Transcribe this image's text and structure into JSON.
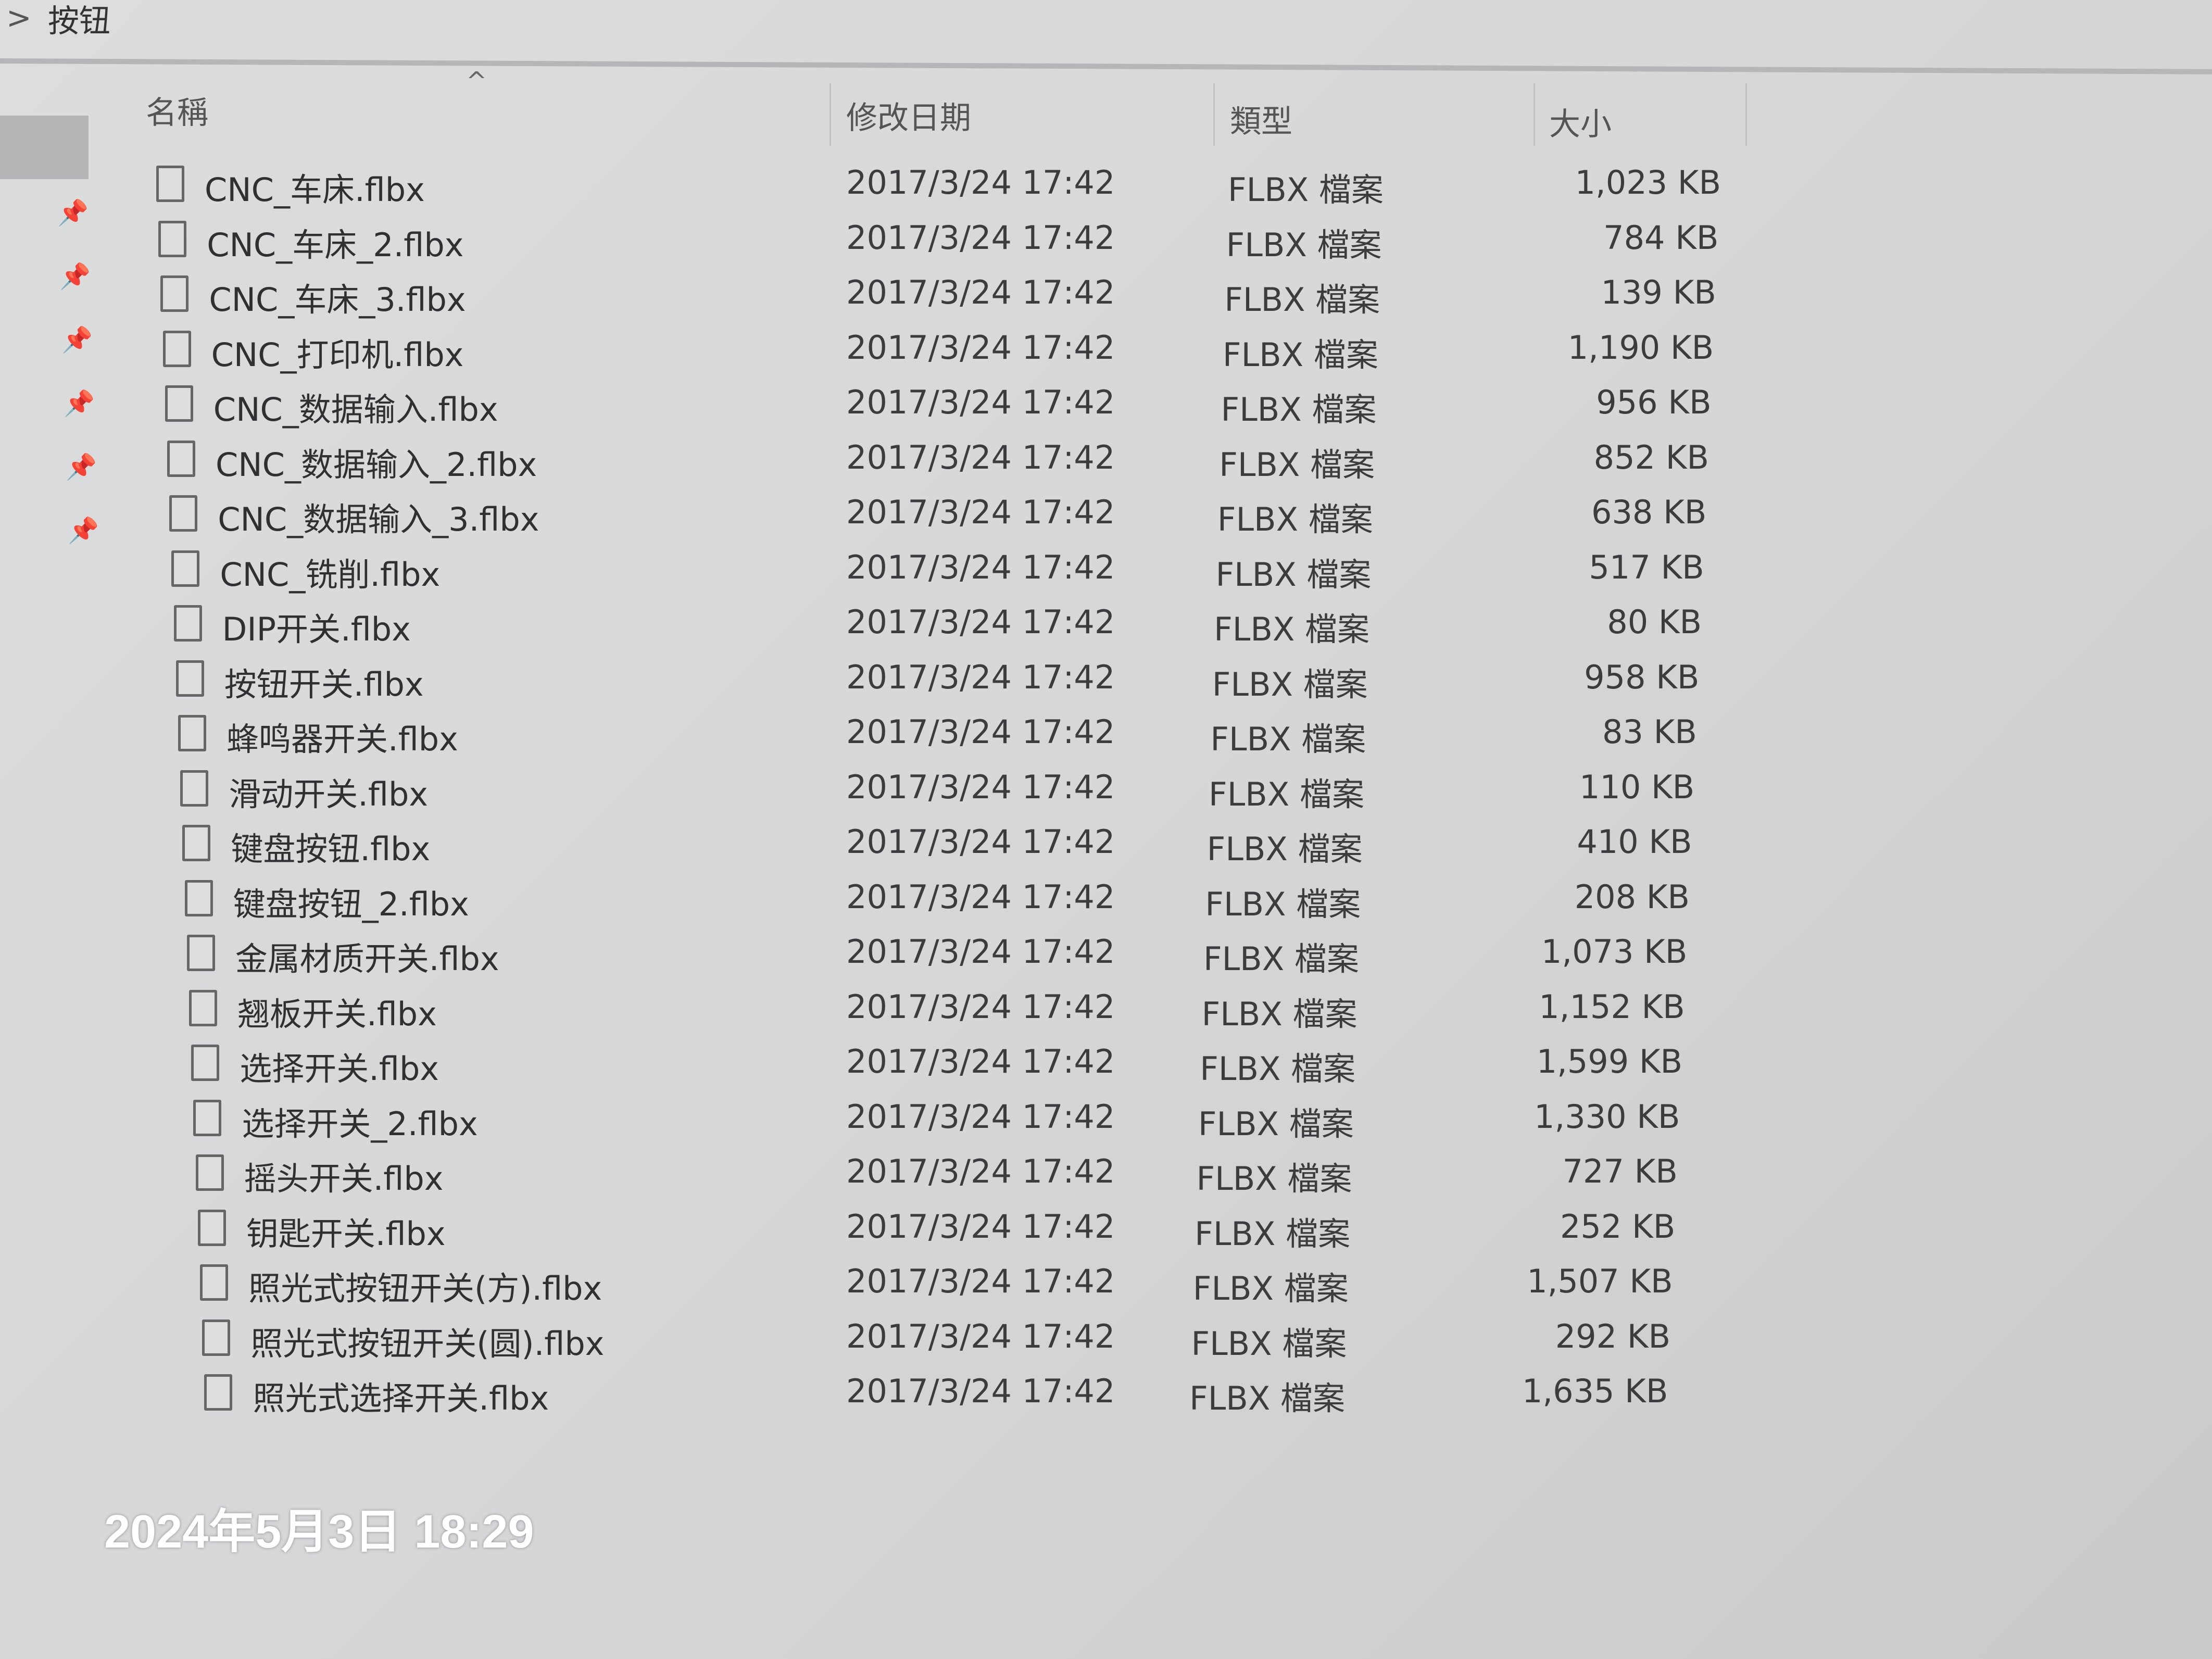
{
  "breadcrumb": {
    "separator": ">",
    "current": "按钮"
  },
  "columns": {
    "name": "名稱",
    "date": "修改日期",
    "type": "類型",
    "size": "大小",
    "sort_indicator": "^"
  },
  "sidebar": {
    "pin_icons": 6
  },
  "files": [
    {
      "name": "CNC_车床.flbx",
      "date": "2017/3/24 17:42",
      "type": "FLBX 檔案",
      "size": "1,023 KB"
    },
    {
      "name": "CNC_车床_2.flbx",
      "date": "2017/3/24 17:42",
      "type": "FLBX 檔案",
      "size": "784 KB"
    },
    {
      "name": "CNC_车床_3.flbx",
      "date": "2017/3/24 17:42",
      "type": "FLBX 檔案",
      "size": "139 KB"
    },
    {
      "name": "CNC_打印机.flbx",
      "date": "2017/3/24 17:42",
      "type": "FLBX 檔案",
      "size": "1,190 KB"
    },
    {
      "name": "CNC_数据输入.flbx",
      "date": "2017/3/24 17:42",
      "type": "FLBX 檔案",
      "size": "956 KB"
    },
    {
      "name": "CNC_数据输入_2.flbx",
      "date": "2017/3/24 17:42",
      "type": "FLBX 檔案",
      "size": "852 KB"
    },
    {
      "name": "CNC_数据输入_3.flbx",
      "date": "2017/3/24 17:42",
      "type": "FLBX 檔案",
      "size": "638 KB"
    },
    {
      "name": "CNC_铣削.flbx",
      "date": "2017/3/24 17:42",
      "type": "FLBX 檔案",
      "size": "517 KB"
    },
    {
      "name": "DIP开关.flbx",
      "date": "2017/3/24 17:42",
      "type": "FLBX 檔案",
      "size": "80 KB"
    },
    {
      "name": "按钮开关.flbx",
      "date": "2017/3/24 17:42",
      "type": "FLBX 檔案",
      "size": "958 KB"
    },
    {
      "name": "蜂鸣器开关.flbx",
      "date": "2017/3/24 17:42",
      "type": "FLBX 檔案",
      "size": "83 KB"
    },
    {
      "name": "滑动开关.flbx",
      "date": "2017/3/24 17:42",
      "type": "FLBX 檔案",
      "size": "110 KB"
    },
    {
      "name": "键盘按钮.flbx",
      "date": "2017/3/24 17:42",
      "type": "FLBX 檔案",
      "size": "410 KB"
    },
    {
      "name": "键盘按钮_2.flbx",
      "date": "2017/3/24 17:42",
      "type": "FLBX 檔案",
      "size": "208 KB"
    },
    {
      "name": "金属材质开关.flbx",
      "date": "2017/3/24 17:42",
      "type": "FLBX 檔案",
      "size": "1,073 KB"
    },
    {
      "name": "翘板开关.flbx",
      "date": "2017/3/24 17:42",
      "type": "FLBX 檔案",
      "size": "1,152 KB"
    },
    {
      "name": "选择开关.flbx",
      "date": "2017/3/24 17:42",
      "type": "FLBX 檔案",
      "size": "1,599 KB"
    },
    {
      "name": "选择开关_2.flbx",
      "date": "2017/3/24 17:42",
      "type": "FLBX 檔案",
      "size": "1,330 KB"
    },
    {
      "name": "摇头开关.flbx",
      "date": "2017/3/24 17:42",
      "type": "FLBX 檔案",
      "size": "727 KB"
    },
    {
      "name": "钥匙开关.flbx",
      "date": "2017/3/24 17:42",
      "type": "FLBX 檔案",
      "size": "252 KB"
    },
    {
      "name": "照光式按钮开关(方).flbx",
      "date": "2017/3/24 17:42",
      "type": "FLBX 檔案",
      "size": "1,507 KB"
    },
    {
      "name": "照光式按钮开关(圆).flbx",
      "date": "2017/3/24 17:42",
      "type": "FLBX 檔案",
      "size": "292 KB"
    },
    {
      "name": "照光式选择开关.flbx",
      "date": "2017/3/24 17:42",
      "type": "FLBX 檔案",
      "size": "1,635 KB"
    }
  ],
  "photo_timestamp": "2024年5月3日 18:29"
}
